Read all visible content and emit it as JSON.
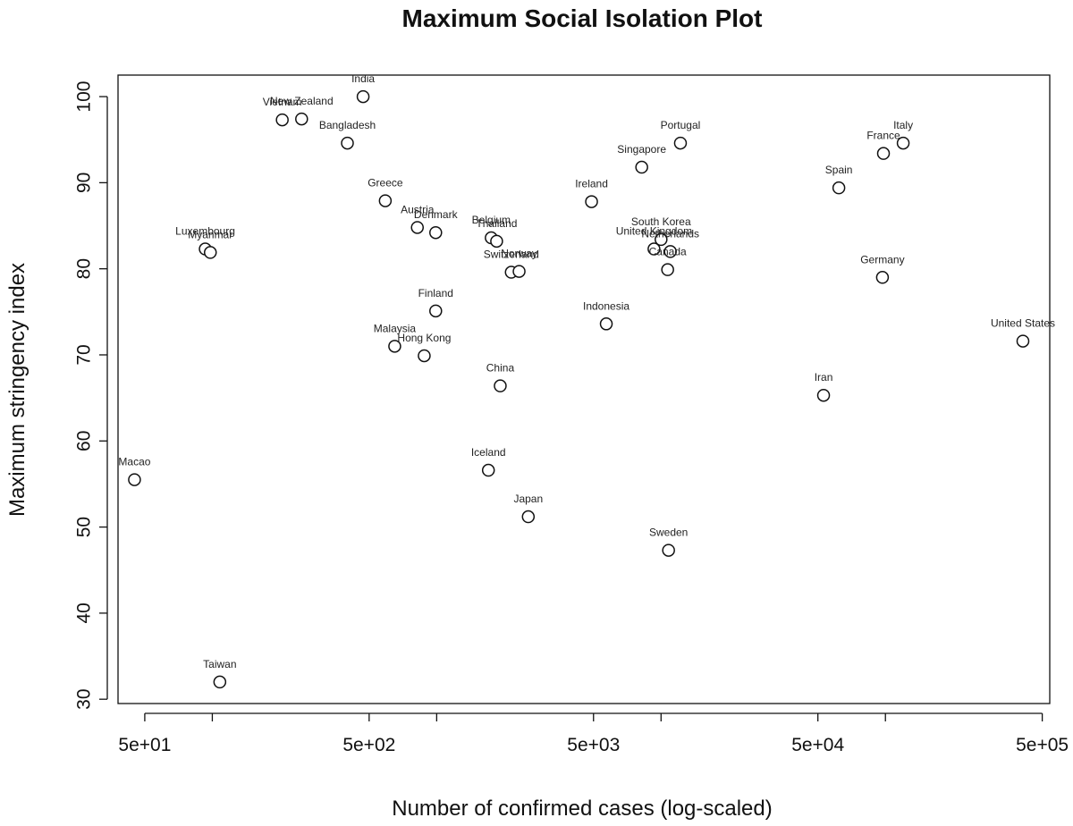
{
  "chart_data": {
    "type": "scatter",
    "title": "Maximum Social Isolation Plot",
    "xlabel": "Number of confirmed cases (log-scaled)",
    "ylabel": "Maximum stringency index",
    "x_scale": "log",
    "xlim": [
      38,
      540000
    ],
    "ylim": [
      29.5,
      102.5
    ],
    "x_ticks": [
      50,
      100,
      500,
      1000,
      5000,
      10000,
      50000,
      100000,
      500000
    ],
    "x_tick_labels": [
      "5e+01",
      "",
      "5e+02",
      "",
      "5e+03",
      "",
      "5e+04",
      "",
      "5e+05"
    ],
    "y_ticks": [
      30,
      40,
      50,
      60,
      70,
      80,
      90,
      100
    ],
    "y_tick_labels": [
      "30",
      "40",
      "50",
      "60",
      "70",
      "80",
      "90",
      "100"
    ],
    "grid": false,
    "legend": "none",
    "marker": "open-circle",
    "points": [
      {
        "label": "India",
        "x": 470,
        "y": 100.0
      },
      {
        "label": "Vietnam",
        "x": 205,
        "y": 97.3
      },
      {
        "label": "New Zealand",
        "x": 250,
        "y": 97.4
      },
      {
        "label": "Bangladesh",
        "x": 400,
        "y": 94.6
      },
      {
        "label": "Greece",
        "x": 590,
        "y": 87.9
      },
      {
        "label": "Austria",
        "x": 820,
        "y": 84.8
      },
      {
        "label": "Denmark",
        "x": 990,
        "y": 84.2
      },
      {
        "label": "Belgium",
        "x": 1750,
        "y": 83.6
      },
      {
        "label": "Thailand",
        "x": 1850,
        "y": 83.2
      },
      {
        "label": "Switzerland",
        "x": 2150,
        "y": 79.6
      },
      {
        "label": "Norway",
        "x": 2330,
        "y": 79.7
      },
      {
        "label": "Luxembourg",
        "x": 93,
        "y": 82.3
      },
      {
        "label": "Myanmar",
        "x": 98,
        "y": 81.9
      },
      {
        "label": "Finland",
        "x": 990,
        "y": 75.1
      },
      {
        "label": "Malaysia",
        "x": 650,
        "y": 71.0
      },
      {
        "label": "Hong Kong",
        "x": 880,
        "y": 69.9
      },
      {
        "label": "China",
        "x": 1920,
        "y": 66.4
      },
      {
        "label": "Ireland",
        "x": 4900,
        "y": 87.8
      },
      {
        "label": "Portugal",
        "x": 12200,
        "y": 94.6
      },
      {
        "label": "Singapore",
        "x": 8200,
        "y": 91.8
      },
      {
        "label": "South Korea",
        "x": 10000,
        "y": 83.4
      },
      {
        "label": "United Kingdom",
        "x": 9300,
        "y": 82.3
      },
      {
        "label": "Netherlands",
        "x": 11000,
        "y": 82.0
      },
      {
        "label": "Canada",
        "x": 10700,
        "y": 79.9
      },
      {
        "label": "Indonesia",
        "x": 5700,
        "y": 73.6
      },
      {
        "label": "Iceland",
        "x": 1700,
        "y": 56.6
      },
      {
        "label": "Japan",
        "x": 2560,
        "y": 51.2
      },
      {
        "label": "Sweden",
        "x": 10800,
        "y": 47.3
      },
      {
        "label": "Macao",
        "x": 45,
        "y": 55.5
      },
      {
        "label": "Taiwan",
        "x": 108,
        "y": 32.0
      },
      {
        "label": "Italy",
        "x": 120000,
        "y": 94.6
      },
      {
        "label": "France",
        "x": 98000,
        "y": 93.4
      },
      {
        "label": "Spain",
        "x": 62000,
        "y": 89.4
      },
      {
        "label": "Germany",
        "x": 97000,
        "y": 79.0
      },
      {
        "label": "Iran",
        "x": 53000,
        "y": 65.3
      },
      {
        "label": "United States",
        "x": 410000,
        "y": 71.6
      }
    ]
  }
}
